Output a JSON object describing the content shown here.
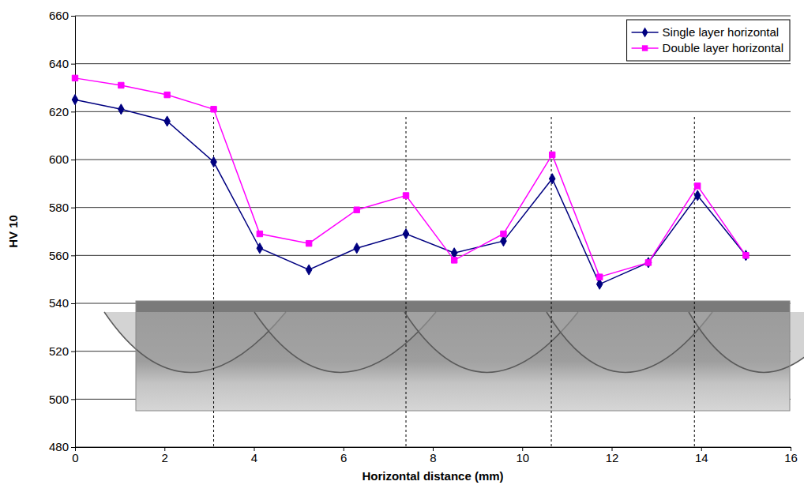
{
  "chart_data": {
    "type": "line",
    "x_label": "Horizontal distance  (mm)",
    "y_label": "HV 10",
    "x": [
      0,
      1.03,
      2.06,
      3.1,
      4.13,
      5.23,
      6.3,
      7.4,
      8.48,
      9.58,
      10.67,
      11.73,
      12.82,
      13.92,
      15.0
    ],
    "series": [
      {
        "name": "Single layer horizontal",
        "color": "#000080",
        "marker": "diamond",
        "line_style": "solid",
        "values": [
          625,
          621,
          616,
          599,
          563,
          554,
          563,
          569,
          561,
          566,
          592,
          548,
          557,
          585,
          560
        ]
      },
      {
        "name": "Double layer horizontal",
        "color": "#ff00ff",
        "marker": "square",
        "line_style": "solid",
        "values": [
          634,
          631,
          627,
          621,
          569,
          565,
          579,
          585,
          558,
          569,
          602,
          551,
          557,
          589,
          560
        ]
      }
    ],
    "vlines": [
      3.1,
      7.4,
      10.65,
      13.85
    ],
    "xlim": [
      0,
      16
    ],
    "xticks": [
      0,
      2,
      4,
      6,
      8,
      10,
      12,
      14,
      16
    ],
    "ylim": [
      480,
      660
    ],
    "yticks": [
      480,
      500,
      520,
      540,
      560,
      580,
      600,
      620,
      640,
      660
    ],
    "grid": true,
    "legend": "upper right"
  }
}
